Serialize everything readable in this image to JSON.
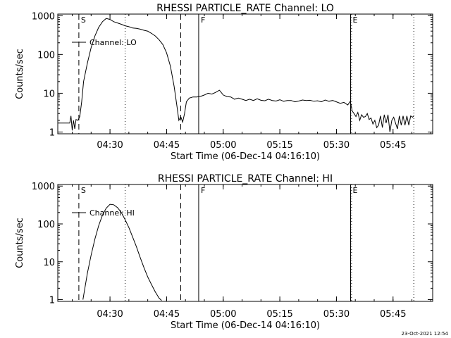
{
  "footer": {
    "timestamp": "23-Oct-2021 12:54"
  },
  "chart_data": [
    {
      "type": "line",
      "title": "RHESSI PARTICLE_RATE Channel: LO",
      "xlabel": "Start Time (06-Dec-14 04:16:10)",
      "ylabel": "Counts/sec",
      "y_scale": "log",
      "ylim": [
        0.9,
        1100
      ],
      "xlim": [
        "04:16:10",
        "05:55:30"
      ],
      "x_ticks": [
        "04:30",
        "04:45",
        "05:00",
        "05:15",
        "05:30",
        "05:45"
      ],
      "y_ticks": [
        "1",
        "10",
        "100",
        "1000"
      ],
      "legend": "Channel: LO",
      "markers": [
        {
          "label": "S",
          "time": "04:21:45",
          "style": "dashed"
        },
        {
          "time": "04:34:00",
          "style": "dotted"
        },
        {
          "time": "04:48:45",
          "style": "dashed"
        },
        {
          "label": "F",
          "time": "04:53:30",
          "style": "solid"
        },
        {
          "label": "E",
          "time": "05:33:45",
          "style": "solid"
        },
        {
          "time": "05:34:00",
          "style": "dotted"
        },
        {
          "time": "05:50:30",
          "style": "dotted"
        }
      ],
      "series": [
        {
          "name": "Channel: LO",
          "x": [
            "04:16:10",
            "04:19:20",
            "04:19:40",
            "04:20:00",
            "04:20:20",
            "04:20:40",
            "04:21:00",
            "04:21:30",
            "04:22:00",
            "04:22:30",
            "04:23:00",
            "04:24:00",
            "04:25:00",
            "04:26:00",
            "04:27:00",
            "04:28:00",
            "04:29:00",
            "04:30:00",
            "04:31:00",
            "04:32:00",
            "04:33:00",
            "04:34:00",
            "04:35:00",
            "04:36:00",
            "04:37:00",
            "04:38:00",
            "04:39:00",
            "04:40:00",
            "04:41:00",
            "04:42:00",
            "04:43:00",
            "04:44:00",
            "04:45:00",
            "04:46:00",
            "04:47:00",
            "04:47:45",
            "04:48:15",
            "04:48:45",
            "04:49:15",
            "04:49:45",
            "04:50:15",
            "04:51:00",
            "04:52:00",
            "04:53:00",
            "04:54:00",
            "04:55:00",
            "04:56:00",
            "04:57:00",
            "04:58:00",
            "04:59:00",
            "05:00:00",
            "05:01:00",
            "05:02:00",
            "05:03:00",
            "05:04:00",
            "05:05:00",
            "05:06:00",
            "05:07:00",
            "05:08:00",
            "05:09:00",
            "05:10:00",
            "05:11:00",
            "05:12:00",
            "05:13:00",
            "05:14:00",
            "05:15:00",
            "05:16:00",
            "05:17:00",
            "05:18:00",
            "05:19:00",
            "05:20:00",
            "05:21:00",
            "05:22:00",
            "05:23:00",
            "05:24:00",
            "05:25:00",
            "05:26:00",
            "05:27:00",
            "05:28:00",
            "05:29:00",
            "05:30:00",
            "05:31:00",
            "05:32:00",
            "05:33:00",
            "05:33:40",
            "05:34:10",
            "05:34:40",
            "05:35:10",
            "05:35:40",
            "05:36:10",
            "05:36:40",
            "05:37:10",
            "05:37:40",
            "05:38:10",
            "05:38:40",
            "05:39:10",
            "05:39:40",
            "05:40:10",
            "05:40:40",
            "05:41:10",
            "05:41:40",
            "05:42:10",
            "05:42:40",
            "05:43:10",
            "05:43:40",
            "05:44:10",
            "05:44:40",
            "05:45:10",
            "05:45:40",
            "05:46:10",
            "05:46:40",
            "05:47:10",
            "05:47:40",
            "05:48:10",
            "05:48:40",
            "05:49:10",
            "05:49:40",
            "05:50:10",
            "05:50:30"
          ],
          "values": [
            1.7,
            1.7,
            2.6,
            1.1,
            2.0,
            1.2,
            2.1,
            2.0,
            2.5,
            6.0,
            20,
            60,
            150,
            300,
            500,
            700,
            850,
            800,
            700,
            650,
            600,
            550,
            520,
            480,
            470,
            450,
            420,
            400,
            350,
            300,
            240,
            180,
            110,
            50,
            15,
            4.5,
            2.0,
            2.5,
            1.8,
            3.0,
            6.0,
            7.5,
            8.0,
            8.0,
            8.3,
            9.0,
            10,
            9.5,
            10.5,
            12,
            9.0,
            8.2,
            8.0,
            7.0,
            7.5,
            7.0,
            6.5,
            7.0,
            6.5,
            7.2,
            6.6,
            6.4,
            7.0,
            6.5,
            6.3,
            6.8,
            6.2,
            6.5,
            6.5,
            6.0,
            6.3,
            6.7,
            6.5,
            6.6,
            6.2,
            6.4,
            6.0,
            6.7,
            6.2,
            6.5,
            6.0,
            5.5,
            5.8,
            5.0,
            6.2,
            3.5,
            3.0,
            2.5,
            3.2,
            2.0,
            2.8,
            2.4,
            2.5,
            3.0,
            2.1,
            2.3,
            1.6,
            2.0,
            1.3,
            1.5,
            2.6,
            1.3,
            2.8,
            1.7,
            2.8,
            1.0,
            2.0,
            2.4,
            1.7,
            1.2,
            2.6,
            1.5,
            2.6,
            1.5,
            2.6,
            1.5,
            2.6,
            2.4,
            2.6
          ]
        }
      ]
    },
    {
      "type": "line",
      "title": "RHESSI PARTICLE_RATE Channel: HI",
      "xlabel": "Start Time (06-Dec-14 04:16:10)",
      "ylabel": "Counts/sec",
      "y_scale": "log",
      "ylim": [
        0.9,
        1100
      ],
      "xlim": [
        "04:16:10",
        "05:55:30"
      ],
      "x_ticks": [
        "04:30",
        "04:45",
        "05:00",
        "05:15",
        "05:30",
        "05:45"
      ],
      "y_ticks": [
        "1",
        "10",
        "100",
        "1000"
      ],
      "legend": "Channel: HI",
      "markers": [
        {
          "label": "S",
          "time": "04:21:45",
          "style": "dashed"
        },
        {
          "time": "04:34:00",
          "style": "dotted"
        },
        {
          "time": "04:48:45",
          "style": "dashed"
        },
        {
          "label": "F",
          "time": "04:53:30",
          "style": "solid"
        },
        {
          "label": "E",
          "time": "05:33:45",
          "style": "solid"
        },
        {
          "time": "05:34:00",
          "style": "dotted"
        },
        {
          "time": "05:50:30",
          "style": "dotted"
        }
      ],
      "series": [
        {
          "name": "Channel: HI",
          "x": [
            "04:22:50",
            "04:23:20",
            "04:24:00",
            "04:25:00",
            "04:26:00",
            "04:27:00",
            "04:28:00",
            "04:29:00",
            "04:30:00",
            "04:31:00",
            "04:32:00",
            "04:33:00",
            "04:34:00",
            "04:35:00",
            "04:36:00",
            "04:37:00",
            "04:38:00",
            "04:39:00",
            "04:40:00",
            "04:41:00",
            "04:42:00",
            "04:43:00",
            "04:43:40"
          ],
          "values": [
            1.0,
            2.0,
            5.0,
            15,
            40,
            90,
            170,
            260,
            330,
            320,
            270,
            200,
            130,
            80,
            45,
            25,
            13,
            7,
            4,
            2.5,
            1.6,
            1.1,
            0.95
          ]
        }
      ]
    }
  ]
}
